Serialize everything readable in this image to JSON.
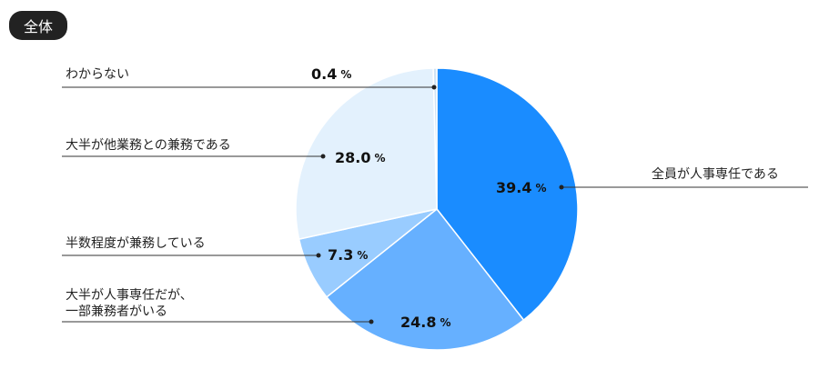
{
  "chart_data": {
    "type": "pie",
    "title": "全体",
    "categories": [
      "全員が人事専任である",
      "大半が人事専任だが、\n一部兼務者がいる",
      "半数程度が兼務している",
      "大半が他業務との兼務である",
      "わからない"
    ],
    "values": [
      39.4,
      24.8,
      7.3,
      28.0,
      0.4
    ],
    "value_labels": [
      "39.4",
      "24.8",
      "7.3",
      "28.0",
      "0.4"
    ],
    "unit": "%",
    "colors": [
      "#1a8cff",
      "#66b0ff",
      "#99ccff",
      "#e3f1fd",
      "#cfe3f5"
    ]
  }
}
